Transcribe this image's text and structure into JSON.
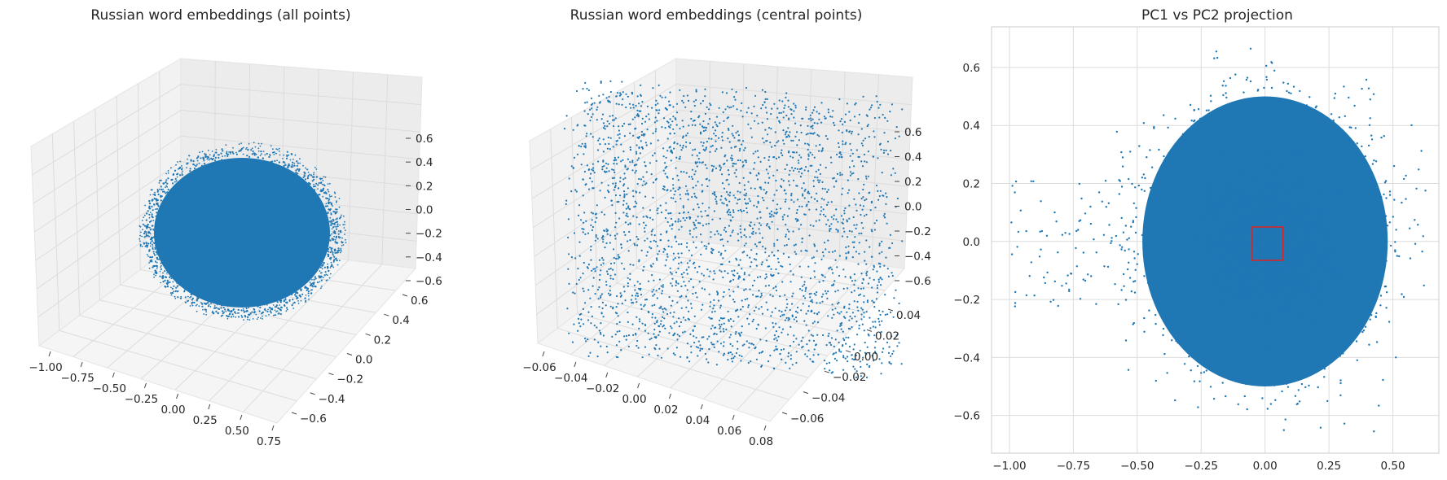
{
  "chart_data": [
    {
      "type": "scatter",
      "projection": "3d",
      "title": "Russian word embeddings (all points)",
      "xlabel": "",
      "ylabel": "",
      "zlabel": "",
      "xlim": [
        -1.05,
        0.8
      ],
      "ylim": [
        -0.72,
        0.72
      ],
      "zlim": [
        -0.72,
        0.72
      ],
      "x_ticks": [
        "−1.00",
        "−0.75",
        "−0.50",
        "−0.25",
        "0.00",
        "0.25",
        "0.50",
        "0.75"
      ],
      "y_ticks": [
        "−0.6",
        "−0.4",
        "−0.2",
        "0.0",
        "0.2",
        "0.4",
        "0.6"
      ],
      "z_ticks": [
        "−0.6",
        "−0.4",
        "−0.2",
        "0.0",
        "0.2",
        "0.4",
        "0.6"
      ],
      "grid": true,
      "color": "#1f77b4",
      "points_description": "dense roughly spherical cloud of embedding points centered near origin, spread about ±0.6"
    },
    {
      "type": "scatter",
      "projection": "3d",
      "title": "Russian word embeddings (central points)",
      "xlabel": "",
      "ylabel": "",
      "zlabel": "",
      "xlim": [
        -0.065,
        0.085
      ],
      "ylim": [
        -0.065,
        0.055
      ],
      "zlim": [
        -0.7,
        0.7
      ],
      "x_ticks": [
        "−0.06",
        "−0.04",
        "−0.02",
        "0.00",
        "0.02",
        "0.04",
        "0.06",
        "0.08"
      ],
      "y_ticks": [
        "−0.06",
        "−0.04",
        "−0.02",
        "0.00",
        "0.02",
        "0.04"
      ],
      "z_ticks": [
        "−0.6",
        "−0.4",
        "−0.2",
        "0.0",
        "0.2",
        "0.4",
        "0.6"
      ],
      "grid": true,
      "color": "#1f77b4",
      "points_description": "sparse uniform box of points with |x|,|y| < 0.06"
    },
    {
      "type": "scatter",
      "title": "PC1 vs PC2 projection",
      "xlabel": "",
      "ylabel": "",
      "xlim": [
        -1.07,
        0.68
      ],
      "ylim": [
        -0.73,
        0.74
      ],
      "x_ticks": [
        -1.0,
        -0.75,
        -0.5,
        -0.25,
        0.0,
        0.25,
        0.5
      ],
      "x_tick_labels": [
        "−1.00",
        "−0.75",
        "−0.50",
        "−0.25",
        "0.00",
        "0.25",
        "0.50"
      ],
      "y_ticks": [
        -0.6,
        -0.4,
        -0.2,
        0.0,
        0.2,
        0.4,
        0.6
      ],
      "y_tick_labels": [
        "−0.6",
        "−0.4",
        "−0.2",
        "0.0",
        "0.2",
        "0.4",
        "0.6"
      ],
      "grid": true,
      "color": "#1f77b4",
      "points_description": "dense elliptical cloud spanning x ≈ −1.0–0.62, y ≈ −0.66–0.69",
      "highlight_rect": {
        "x": [
          -0.05,
          0.07
        ],
        "y": [
          -0.065,
          0.05
        ],
        "color": "#d62728"
      }
    }
  ]
}
